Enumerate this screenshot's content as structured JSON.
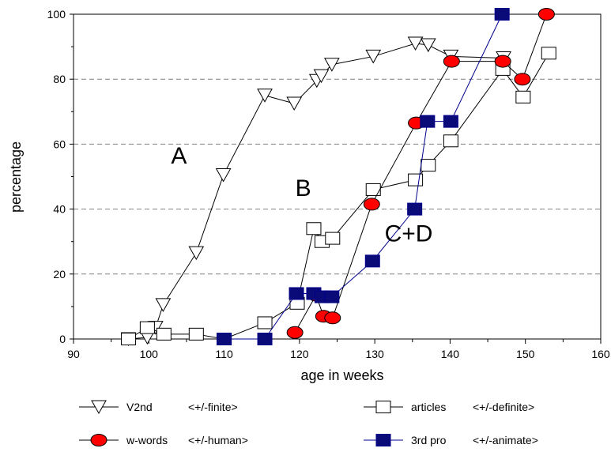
{
  "chart_data": {
    "type": "line",
    "xlabel": "age in weeks",
    "ylabel": "percentage",
    "xlim": [
      90,
      160
    ],
    "ylim": [
      0,
      100
    ],
    "x_ticks": [
      "90",
      "100",
      "110",
      "120",
      "130",
      "140",
      "150",
      "160"
    ],
    "y_ticks": [
      "0",
      "20",
      "40",
      "60",
      "80",
      "100"
    ],
    "grid": "horizontal dashed",
    "annotations": [
      {
        "text": "A",
        "x": 104,
        "y": 54
      },
      {
        "text": "B",
        "x": 120.5,
        "y": 44
      },
      {
        "text": "C+D",
        "x": 134.5,
        "y": 30
      }
    ],
    "series": [
      {
        "name": "V2nd",
        "legend_note": "<+/-finite>",
        "marker": "triangle-down",
        "color": "#000000",
        "fill": "#ffffff",
        "points": [
          [
            97.3,
            0
          ],
          [
            99.8,
            0.5
          ],
          [
            100.9,
            3.5
          ],
          [
            101.9,
            10.5
          ],
          [
            106.3,
            26.5
          ],
          [
            109.9,
            50.5
          ],
          [
            115.4,
            75
          ],
          [
            119.3,
            72.5
          ],
          [
            122.3,
            79.5
          ],
          [
            122.9,
            81
          ],
          [
            124.3,
            84.5
          ],
          [
            129.8,
            87
          ],
          [
            135.4,
            91
          ],
          [
            137.1,
            90.5
          ],
          [
            140.1,
            87
          ],
          [
            147.1,
            86.5
          ]
        ]
      },
      {
        "name": "articles",
        "legend_note": "<+/-definite>",
        "marker": "square",
        "color": "#000000",
        "fill": "#ffffff",
        "points": [
          [
            97.3,
            0
          ],
          [
            99.8,
            3.5
          ],
          [
            102.0,
            1.5
          ],
          [
            106.3,
            1.5
          ],
          [
            110.0,
            0
          ],
          [
            115.4,
            5
          ],
          [
            119.7,
            11
          ],
          [
            121.9,
            34
          ],
          [
            123.0,
            30
          ],
          [
            124.4,
            31
          ],
          [
            129.8,
            46
          ],
          [
            135.4,
            49
          ],
          [
            137.1,
            53.5
          ],
          [
            140.1,
            61
          ],
          [
            147.0,
            83
          ],
          [
            149.7,
            74.5
          ],
          [
            153.1,
            88
          ]
        ]
      },
      {
        "name": "w-words",
        "legend_note": "<+/-human>",
        "marker": "circle",
        "color": "#000000",
        "fill": "#ff0000",
        "points": [
          [
            119.4,
            2
          ],
          [
            122.2,
            13.5
          ],
          [
            123.2,
            7
          ],
          [
            124.4,
            6.5
          ],
          [
            129.6,
            41.5
          ],
          [
            135.5,
            66.5
          ],
          [
            140.2,
            85.5
          ],
          [
            147.0,
            85.5
          ],
          [
            149.6,
            80
          ],
          [
            152.8,
            100
          ]
        ]
      },
      {
        "name": "3rd pro",
        "legend_note": "<+/-animate>",
        "marker": "square-filled",
        "color": "#00008b",
        "fill": "#0a0a78",
        "points": [
          [
            110.0,
            0
          ],
          [
            115.4,
            0
          ],
          [
            119.6,
            14
          ],
          [
            121.9,
            14
          ],
          [
            123.0,
            13
          ],
          [
            124.3,
            13
          ],
          [
            129.7,
            24
          ],
          [
            135.3,
            40
          ],
          [
            137.0,
            67
          ],
          [
            140.1,
            67
          ],
          [
            146.9,
            100
          ]
        ]
      }
    ]
  }
}
